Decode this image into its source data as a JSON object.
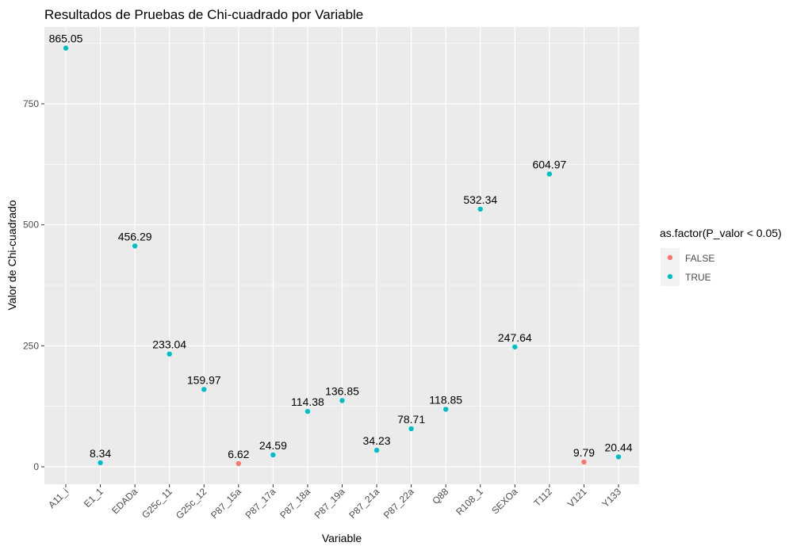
{
  "chart_data": {
    "type": "scatter",
    "title": "Resultados de Pruebas de Chi-cuadrado por Variable",
    "xlabel": "Variable",
    "ylabel": "Valor de Chi-cuadrado",
    "ylim": [
      -43,
      900
    ],
    "yticks": [
      0,
      250,
      500,
      750
    ],
    "grid": true,
    "categories": [
      "A11_i",
      "E1_1",
      "EDADa",
      "G25c_11",
      "G25c_12",
      "P87_15a",
      "P87_17a",
      "P87_18a",
      "P87_19a",
      "P87_21a",
      "P87_22a",
      "Q88",
      "R108_1",
      "SEXOa",
      "T112",
      "V121",
      "Y133"
    ],
    "values": [
      865.05,
      8.34,
      456.29,
      233.04,
      159.97,
      6.62,
      24.59,
      114.38,
      136.85,
      34.23,
      78.71,
      118.85,
      532.34,
      247.64,
      604.97,
      9.79,
      20.44
    ],
    "labels": [
      "865.05",
      "8.34",
      "456.29",
      "233.04",
      "159.97",
      "6.62",
      "24.59",
      "114.38",
      "136.85",
      "34.23",
      "78.71",
      "118.85",
      "532.34",
      "247.64",
      "604.97",
      "9.79",
      "20.44"
    ],
    "significant": [
      true,
      true,
      true,
      true,
      true,
      false,
      true,
      true,
      true,
      true,
      true,
      true,
      true,
      true,
      true,
      false,
      true
    ],
    "legend": {
      "title": "as.factor(P_valor < 0.05)",
      "position": "right",
      "entries": [
        {
          "label": "FALSE",
          "color": "#F8766D"
        },
        {
          "label": "TRUE",
          "color": "#00BFC4"
        }
      ]
    }
  }
}
